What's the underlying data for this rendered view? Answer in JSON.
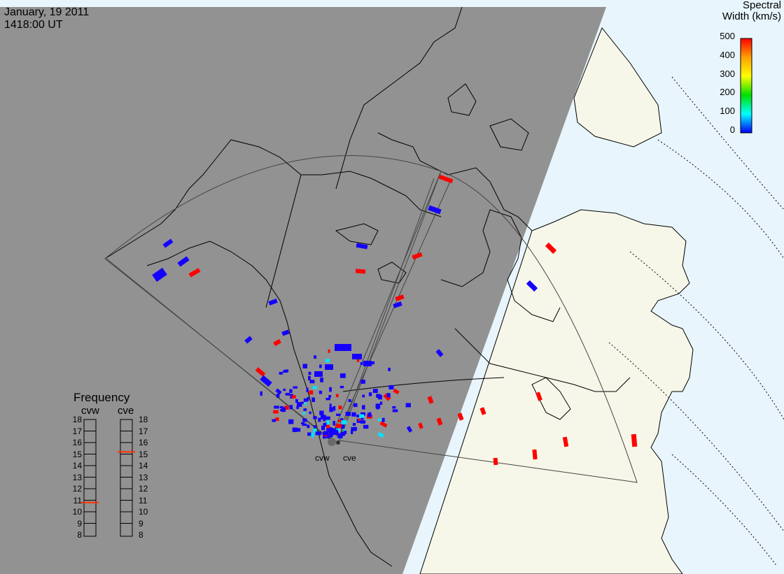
{
  "header": {
    "date": "January, 19 2011",
    "time": "1418:00 UT"
  },
  "colorbar": {
    "title_line1": "Spectral",
    "title_line2": "Width (km/s)",
    "ticks": [
      "500",
      "400",
      "300",
      "200",
      "100",
      "0"
    ],
    "colors": [
      "#ff0000",
      "#ffa000",
      "#ffff00",
      "#00e000",
      "#00ffff",
      "#0000ff"
    ]
  },
  "frequency": {
    "title": "Frequency",
    "left_label": "cvw",
    "right_label": "cve",
    "ticks": [
      "18",
      "17",
      "16",
      "15",
      "14",
      "13",
      "12",
      "11",
      "10",
      "9",
      "8"
    ],
    "cvw_value_mhz": 10.8,
    "cve_value_mhz": 15.2
  },
  "sites": {
    "west": "cvw",
    "east": "cve"
  },
  "colors": {
    "night_side": "#929292",
    "day_land": "#f7f7e9",
    "day_ocean": "#e8f5fc",
    "low_width": "#1400ff",
    "high_width": "#ff0000",
    "mid_width": "#00e5ff"
  }
}
